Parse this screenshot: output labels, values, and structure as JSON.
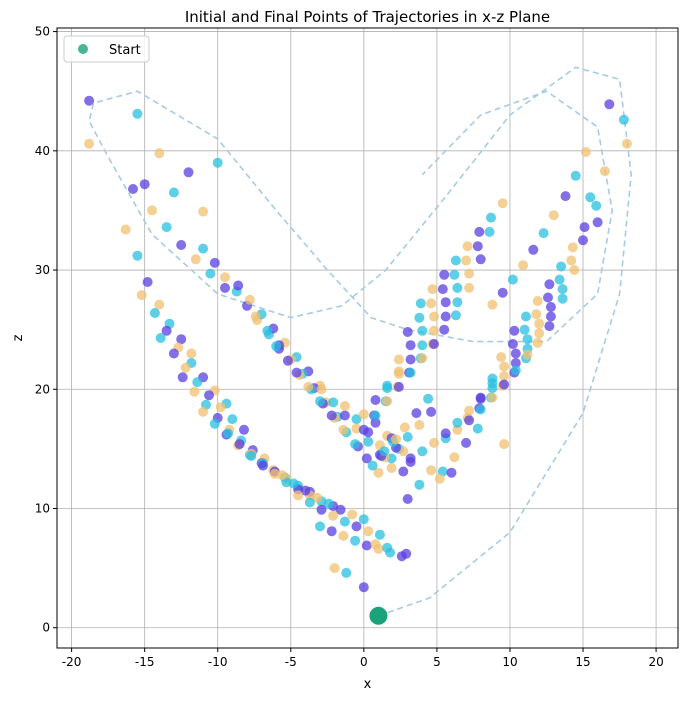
{
  "chart_data": {
    "type": "scatter",
    "title": "Initial and Final Points of Trajectories in x-z Plane",
    "xlabel": "x",
    "ylabel": "z",
    "xlim": [
      -21,
      21.5
    ],
    "ylim": [
      -1.7,
      50.3
    ],
    "xticks": [
      -20,
      -15,
      -10,
      -5,
      0,
      5,
      10,
      15,
      20
    ],
    "yticks": [
      0,
      10,
      20,
      30,
      40,
      50
    ],
    "grid": true,
    "legend": {
      "placement": "top-left",
      "entries": [
        "Start"
      ]
    },
    "colors": {
      "start_marker": "#1aa37a",
      "trajectory": "#a6cbe3",
      "grid": "#b0b0b0",
      "palette": [
        "#5a3fe0",
        "#3d7ae8",
        "#27c0e0",
        "#6fe8c0",
        "#b8f08a",
        "#f0c070",
        "#f68a4e",
        "#e02e2e"
      ]
    },
    "start_point": {
      "x": 1.0,
      "z": 1.0
    },
    "series": [
      {
        "label": "trajectory",
        "style": "dashed line",
        "x": [
          1.0,
          4.5,
          10.0,
          15.0,
          17.5,
          18.3,
          17.5,
          14.5,
          10.0,
          5.5,
          1.5,
          -1.5,
          -5.0,
          -10.0,
          -14.5,
          -17.5,
          -18.8,
          -18.5,
          -15.5,
          -10.0,
          -6.0,
          -2.5,
          0.5,
          3.0,
          7.5,
          12.5,
          16.0,
          17.0,
          16.0,
          12.5,
          8.0,
          4.0
        ],
        "z": [
          1.0,
          2.5,
          8.0,
          18.0,
          28.0,
          38.0,
          46.0,
          47.0,
          43.0,
          36.0,
          30.0,
          27.0,
          26.0,
          28.0,
          33.0,
          39.5,
          42.5,
          44.0,
          45.0,
          41.0,
          35.0,
          30.0,
          26.0,
          25.0,
          24.0,
          24.0,
          28.0,
          35.0,
          42.0,
          45.0,
          43.0,
          38.0
        ]
      },
      {
        "label": "final points",
        "style": "scatter, palette colored",
        "x": [
          -18.8,
          -18.8,
          -15.5,
          -15.0,
          -14.0,
          -13.0,
          -12.0,
          -11.0,
          -10.0,
          -15.8,
          -14.5,
          -13.5,
          -12.5,
          -11.5,
          -10.5,
          -9.5,
          -16.3,
          -15.5,
          -14.8,
          -14.0,
          -13.3,
          -12.5,
          -11.8,
          -11.0,
          -10.2,
          -9.5,
          -8.7,
          -8.0,
          -7.3,
          -6.5,
          -5.8,
          -15.2,
          -14.3,
          -13.5,
          -12.7,
          -11.8,
          -11.0,
          -10.2,
          -9.4,
          -8.6,
          -7.8,
          -7.0,
          -6.2,
          -5.4,
          -4.6,
          -3.8,
          -3.0,
          -13.9,
          -13.0,
          -12.2,
          -11.4,
          -10.6,
          -9.8,
          -9.0,
          -8.2,
          -7.4,
          -6.6,
          -5.8,
          -5.0,
          -4.2,
          -3.4,
          -2.6,
          -1.8,
          -12.4,
          -11.6,
          -10.8,
          -10.0,
          -9.2,
          -8.4,
          -7.6,
          -6.8,
          -6.0,
          -5.2,
          -4.4,
          -3.6,
          -2.8,
          -2.0,
          -1.2,
          -0.4,
          -11.0,
          -10.2,
          -9.4,
          -8.6,
          -7.8,
          -7.0,
          -6.2,
          -5.4,
          -4.6,
          -3.8,
          -3.0,
          -2.2,
          -1.4,
          -0.6,
          0.2,
          1.0,
          -9.3,
          -8.5,
          -7.7,
          -6.9,
          -6.1,
          -5.3,
          -4.5,
          -3.7,
          -2.9,
          -2.1,
          -1.3,
          -0.5,
          0.3,
          1.1,
          1.9,
          -7.7,
          -6.9,
          -6.1,
          -5.3,
          -4.5,
          -3.7,
          -2.9,
          -2.1,
          -1.3,
          -0.5,
          0.3,
          1.1,
          1.9,
          2.7,
          -5.6,
          -4.8,
          -4.0,
          -3.2,
          -2.4,
          -1.6,
          -0.8,
          0.0,
          0.8,
          1.6,
          2.4,
          3.2,
          -4.5,
          -3.7,
          -2.9,
          -2.1,
          -1.3,
          -0.5,
          0.3,
          1.1,
          1.9,
          2.7,
          -3.0,
          -2.2,
          -1.4,
          -0.6,
          0.2,
          1.0,
          1.8,
          2.6,
          -2.0,
          -1.2,
          0.0,
          0.8,
          1.6,
          2.9,
          18.0,
          17.8,
          16.8,
          16.5,
          15.5,
          16.0,
          15.2,
          14.5,
          13.8,
          13.0,
          12.3,
          11.6,
          10.9,
          10.2,
          9.5,
          8.8,
          15.9,
          15.1,
          14.3,
          13.5,
          12.7,
          11.9,
          11.1,
          10.3,
          9.5,
          8.7,
          7.9,
          7.1,
          6.3,
          5.5,
          4.7,
          3.9,
          15.0,
          14.2,
          13.4,
          12.6,
          11.8,
          11.0,
          10.2,
          9.4,
          8.6,
          7.8,
          7.0,
          6.2,
          5.4,
          4.6,
          3.8,
          3.0,
          14.4,
          13.6,
          12.8,
          12.0,
          11.2,
          10.4,
          9.6,
          8.8,
          8.0,
          7.2,
          6.4,
          5.6,
          4.8,
          4.0,
          3.2,
          2.4,
          13.6,
          12.8,
          12.0,
          11.2,
          10.4,
          9.6,
          8.8,
          8.0,
          7.2,
          6.4,
          5.6,
          4.8,
          4.0,
          3.2,
          2.4,
          1.6,
          12.7,
          11.9,
          11.1,
          10.3,
          9.5,
          8.7,
          7.9,
          7.1,
          6.3,
          5.5,
          4.7,
          3.9,
          3.1,
          2.3,
          1.5,
          0.7,
          11.2,
          10.4,
          9.6,
          8.8,
          8.0,
          7.2,
          6.4,
          5.6,
          4.8,
          4.0,
          3.2,
          2.4,
          1.6,
          0.8,
          0.0,
          9.6,
          8.8,
          8.0,
          7.2,
          6.4,
          5.6,
          4.8,
          4.0,
          3.2,
          2.4,
          1.6,
          0.8,
          0.0,
          7.8,
          7.0,
          6.2,
          5.4,
          4.6,
          3.8,
          3.0,
          2.2,
          1.4,
          0.6,
          6.0,
          5.2,
          4.4,
          3.6,
          2.8,
          2.0,
          1.2,
          4.6,
          3.8,
          3.0,
          2.2,
          1.4
        ],
        "z": [
          44.2,
          40.6,
          43.1,
          37.2,
          39.8,
          36.5,
          38.2,
          34.9,
          39.0,
          36.8,
          35.0,
          33.6,
          32.1,
          30.9,
          29.7,
          28.5,
          33.4,
          31.2,
          29.0,
          27.1,
          25.5,
          24.2,
          23.0,
          31.8,
          30.6,
          29.4,
          28.2,
          27.0,
          25.8,
          24.6,
          23.4,
          27.9,
          26.4,
          24.9,
          23.5,
          22.2,
          21.0,
          19.9,
          18.8,
          28.7,
          27.5,
          26.3,
          25.1,
          23.9,
          22.7,
          21.5,
          20.3,
          24.3,
          23.0,
          21.8,
          20.6,
          19.5,
          18.5,
          17.5,
          16.6,
          26.1,
          24.9,
          23.7,
          22.5,
          21.3,
          20.1,
          18.9,
          17.7,
          21.0,
          19.8,
          18.7,
          17.6,
          16.6,
          15.7,
          14.9,
          14.2,
          23.6,
          22.4,
          21.2,
          20.0,
          18.8,
          17.6,
          16.4,
          15.2,
          18.1,
          17.1,
          16.2,
          15.3,
          14.5,
          13.8,
          13.2,
          12.6,
          21.4,
          20.2,
          19.0,
          17.8,
          16.6,
          15.4,
          14.2,
          13.0,
          16.3,
          15.4,
          14.6,
          13.8,
          13.1,
          12.5,
          11.9,
          11.4,
          20.0,
          18.9,
          17.8,
          16.7,
          15.6,
          14.5,
          13.4,
          14.4,
          13.6,
          12.9,
          12.2,
          11.6,
          11.1,
          10.6,
          10.2,
          18.6,
          17.5,
          16.4,
          15.3,
          14.2,
          13.1,
          12.8,
          12.1,
          11.5,
          10.9,
          10.4,
          9.9,
          9.5,
          9.1,
          17.2,
          16.1,
          15.0,
          13.9,
          11.1,
          10.5,
          9.9,
          9.4,
          8.9,
          8.5,
          8.1,
          7.8,
          15.9,
          14.8,
          8.5,
          8.1,
          7.7,
          7.3,
          6.9,
          6.6,
          6.3,
          6.0,
          5.0,
          4.6,
          3.4,
          7.0,
          6.7,
          6.2,
          40.6,
          42.6,
          43.9,
          38.3,
          36.1,
          34.0,
          39.9,
          37.9,
          36.2,
          34.6,
          33.1,
          31.7,
          30.4,
          29.2,
          28.1,
          27.1,
          35.4,
          33.6,
          31.9,
          30.3,
          28.8,
          27.4,
          26.1,
          24.9,
          35.6,
          34.4,
          33.2,
          32.0,
          30.8,
          29.6,
          28.4,
          27.2,
          32.5,
          30.8,
          29.2,
          27.7,
          26.3,
          25.0,
          23.8,
          22.7,
          33.2,
          32.0,
          30.8,
          29.6,
          28.4,
          27.2,
          26.0,
          24.8,
          30.0,
          28.4,
          26.9,
          25.5,
          24.2,
          23.0,
          21.9,
          20.9,
          30.9,
          29.7,
          28.5,
          27.3,
          26.1,
          24.9,
          23.7,
          22.5,
          27.6,
          26.1,
          24.7,
          23.4,
          22.2,
          21.1,
          20.1,
          19.2,
          28.5,
          27.3,
          26.1,
          24.9,
          23.7,
          22.5,
          21.3,
          20.1,
          25.3,
          23.9,
          22.6,
          21.4,
          20.3,
          19.3,
          18.4,
          17.6,
          26.2,
          25.0,
          23.8,
          22.6,
          21.4,
          20.2,
          19.0,
          17.8,
          22.9,
          21.6,
          20.4,
          19.3,
          18.3,
          17.4,
          16.6,
          15.9,
          23.8,
          22.6,
          21.4,
          20.2,
          19.0,
          17.8,
          16.6,
          15.4,
          20.5,
          19.3,
          18.2,
          17.2,
          16.3,
          15.5,
          14.8,
          14.2,
          21.5,
          20.3,
          19.1,
          17.9,
          16.7,
          15.5,
          14.3,
          13.1,
          18.1,
          17.0,
          16.0,
          15.1,
          14.3,
          13.6,
          13.0,
          12.5,
          19.2,
          18.0,
          16.8,
          15.6,
          14.4,
          13.2,
          12.0,
          10.8,
          15.8,
          14.8,
          13.9,
          13.1,
          12.4,
          11.8,
          11.3,
          10.9,
          16.8,
          15.6,
          14.4,
          13.2,
          12.0,
          10.8,
          9.6
        ]
      }
    ]
  }
}
